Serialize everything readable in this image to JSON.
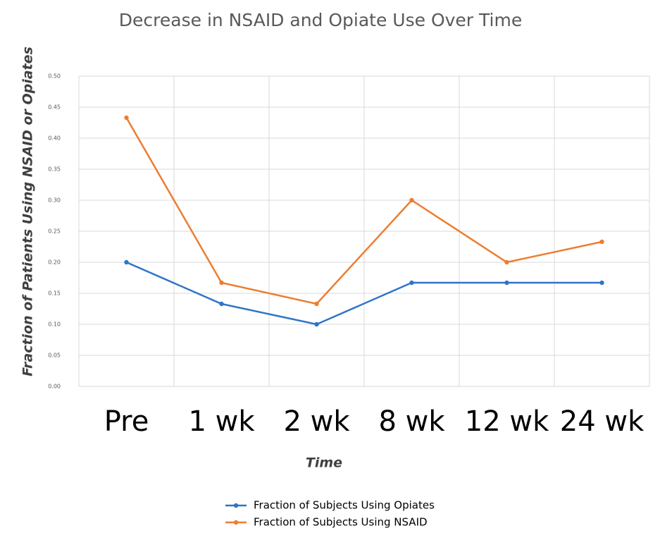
{
  "chart_data": {
    "type": "line",
    "title": "Decrease in NSAID and Opiate Use Over Time",
    "x_label": "Time",
    "y_label": "Fraction of Patients Using NSAID or Opiates",
    "categories": [
      "Pre",
      "1 wk",
      "2 wk",
      "8 wk",
      "12 wk",
      "24 wk"
    ],
    "series": [
      {
        "name": "Fraction of Subjects Using Opiates",
        "color": "#2f75c7",
        "values": [
          0.2,
          0.133,
          0.1,
          0.167,
          0.167,
          0.167
        ]
      },
      {
        "name": "Fraction of Subjects Using NSAID",
        "color": "#ed7d31",
        "values": [
          0.433,
          0.167,
          0.133,
          0.3,
          0.2,
          0.233
        ]
      }
    ],
    "ylim": [
      0,
      0.5
    ],
    "yticks": [
      {
        "value": 0,
        "label": "0.00"
      },
      {
        "value": 0.05,
        "label": "0.05"
      },
      {
        "value": 0.1,
        "label": "0.10"
      },
      {
        "value": 0.15,
        "label": "0.15"
      },
      {
        "value": 0.2,
        "label": "0.20"
      },
      {
        "value": 0.25,
        "label": "0.25"
      },
      {
        "value": 0.3,
        "label": "0.30"
      },
      {
        "value": 0.35,
        "label": "0.35"
      },
      {
        "value": 0.4,
        "label": "0.40"
      },
      {
        "value": 0.45,
        "label": "0.45"
      },
      {
        "value": 0.5,
        "label": "0.50"
      }
    ],
    "grid": true,
    "legend": "bottom"
  }
}
